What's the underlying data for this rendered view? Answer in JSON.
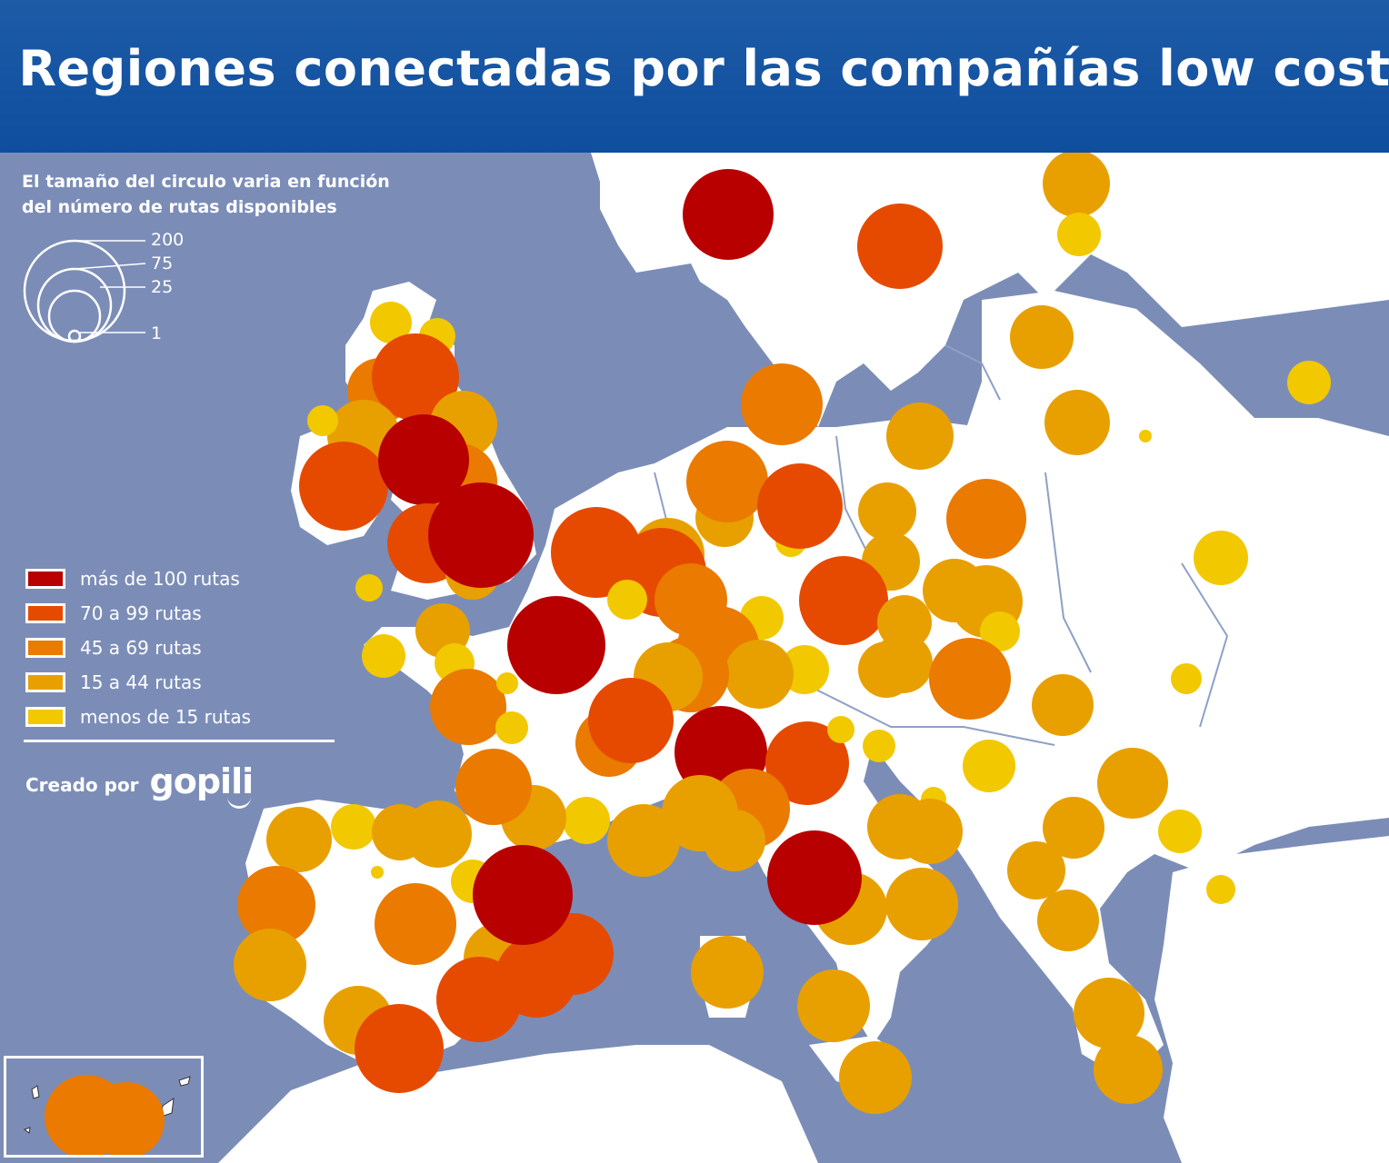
{
  "header": {
    "title": "Regiones conectadas por las compañías low cost",
    "icon": "airplane-icon",
    "background": "#1558a8"
  },
  "size_legend": {
    "note_line1": "El tamaño del circulo varia en función",
    "note_line2": "del número de rutas disponibles",
    "labels": [
      "200",
      "75",
      "25",
      "1"
    ]
  },
  "legend": {
    "items": [
      {
        "label": "más de 100 rutas",
        "color": "#b90000"
      },
      {
        "label": "70 a 99 rutas",
        "color": "#e64a00"
      },
      {
        "label": "45 a 69 rutas",
        "color": "#ea7a00"
      },
      {
        "label": "15 a 44 rutas",
        "color": "#e8a000"
      },
      {
        "label": "menos de 15 rutas",
        "color": "#f2c800"
      }
    ]
  },
  "credit": {
    "prefix": "Creado por",
    "brand": "gopili"
  },
  "colors": {
    "sea": "#7b8db7",
    "land": "#ffffff",
    "border": "#8fa0c6"
  }
}
